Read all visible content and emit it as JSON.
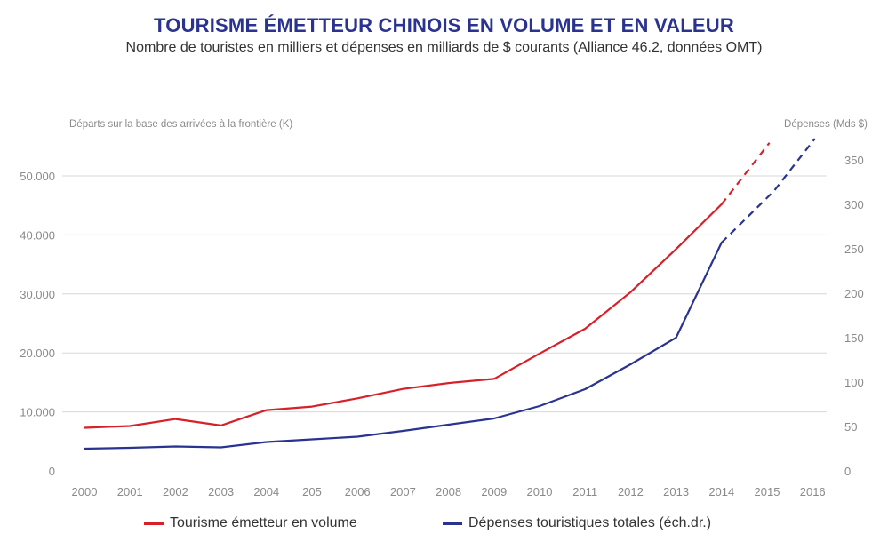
{
  "title": "TOURISME ÉMETTEUR CHINOIS EN VOLUME ET EN VALEUR",
  "subtitle": "Nombre de touristes en milliers et dépenses en milliards de $ courants (Alliance 46.2, données OMT)",
  "colors": {
    "series1": "#d7202a",
    "series2": "#2a3490",
    "grid": "#d8d8d8",
    "tick": "#8a8a8a"
  },
  "chart_data": {
    "type": "line",
    "title": "TOURISME ÉMETTEUR CHINOIS EN VOLUME ET EN VALEUR",
    "x": [
      "2000",
      "2001",
      "2002",
      "2003",
      "2004",
      "205",
      "2006",
      "2007",
      "2008",
      "2009",
      "2010",
      "2011",
      "2012",
      "2013",
      "2014",
      "2015",
      "2016"
    ],
    "ylabel_left": "Départs sur la base des arrivées à la frontière (K)",
    "ylabel_right": "Dépenses (Mds $)",
    "y_left": {
      "range": [
        0,
        55000
      ],
      "ticks": [
        0,
        10000,
        20000,
        30000,
        40000,
        50000
      ],
      "tick_labels": [
        "0",
        "10.000",
        "20.000",
        "30.000",
        "40.000",
        "50.000"
      ]
    },
    "y_right": {
      "range": [
        0,
        366.7
      ],
      "ticks": [
        0,
        50,
        100,
        150,
        200,
        250,
        300,
        350
      ],
      "tick_labels": [
        "0",
        "50",
        "100",
        "150",
        "200",
        "250",
        "300",
        "350"
      ]
    },
    "grid": true,
    "series": [
      {
        "name": "Tourisme émetteur en volume",
        "axis": "left",
        "color": "#d7202a",
        "values": [
          7300,
          7600,
          8800,
          7700,
          10300,
          10900,
          12300,
          13900,
          14900,
          15600,
          19900,
          24100,
          30300,
          37600,
          45200,
          null,
          null
        ],
        "projection": [
          {
            "x": 14,
            "y": 45200
          },
          {
            "x": 15.05,
            "y": 55600
          }
        ]
      },
      {
        "name": "Dépenses touristiques totales (éch.dr.)",
        "axis": "right",
        "color": "#2a3490",
        "values": [
          25,
          26,
          27.5,
          26.5,
          32.5,
          35.5,
          38.5,
          45,
          52,
          59,
          73,
          92,
          120,
          150,
          257,
          null,
          null
        ],
        "projection": [
          {
            "x": 14,
            "y": 257
          },
          {
            "x": 15.15,
            "y": 315
          },
          {
            "x": 16.05,
            "y": 374
          }
        ]
      }
    ]
  },
  "legend": {
    "items": [
      {
        "label": "Tourisme émetteur en volume",
        "color": "#d7202a"
      },
      {
        "label": "Dépenses touristiques totales (éch.dr.)",
        "color": "#2a3490"
      }
    ]
  }
}
